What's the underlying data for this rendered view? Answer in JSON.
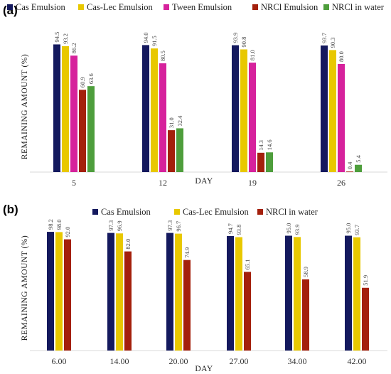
{
  "chart_data": [
    {
      "panel": "(a)",
      "type": "bar",
      "xlabel": "DAY",
      "ylabel": "REMAINING AMOUNT (%)",
      "ylim": [
        0,
        100
      ],
      "grid": false,
      "legend_position": "top",
      "categories": [
        "5",
        "12",
        "19",
        "26"
      ],
      "series": [
        {
          "name": "Cas Emulsion",
          "color": "#14195e",
          "values": [
            94.5,
            94.0,
            93.9,
            93.7
          ]
        },
        {
          "name": "Cas-Lec Emulsion",
          "color": "#e8c800",
          "values": [
            93.2,
            91.5,
            90.8,
            90.3
          ]
        },
        {
          "name": "Tween Emulsion",
          "color": "#d6229c",
          "values": [
            86.2,
            80.5,
            81.0,
            80.0
          ]
        },
        {
          "name": "NRCl Emulsion",
          "color": "#a4200c",
          "values": [
            60.9,
            31.0,
            14.3,
            0.4
          ]
        },
        {
          "name": "NRCl in water",
          "color": "#4e9e3c",
          "values": [
            63.6,
            32.4,
            14.6,
            5.4
          ]
        }
      ],
      "data_labels": [
        [
          "94.5",
          "94.0",
          "93.9",
          "93.7"
        ],
        [
          "93.2",
          "91.5",
          "90.8",
          "90.3"
        ],
        [
          "86.2",
          "80.5",
          "81.0",
          "80.0"
        ],
        [
          "60.9",
          "31.0",
          "14.3",
          "0.4"
        ],
        [
          "63.6",
          "32.4",
          "14.6",
          "5.4"
        ]
      ]
    },
    {
      "panel": "(b)",
      "type": "bar",
      "xlabel": "DAY",
      "ylabel": "REMAINING AMOUNT (%)",
      "ylim": [
        0,
        100
      ],
      "grid": false,
      "legend_position": "top",
      "categories": [
        "6.00",
        "14.00",
        "20.00",
        "27.00",
        "34.00",
        "42.00"
      ],
      "series": [
        {
          "name": "Cas Emulsion",
          "color": "#14195e",
          "values": [
            98.2,
            97.3,
            97.3,
            94.7,
            95.0,
            95.0
          ]
        },
        {
          "name": "Cas-Lec Emulsion",
          "color": "#e8c800",
          "values": [
            98.0,
            96.9,
            96.7,
            93.8,
            93.9,
            93.7
          ]
        },
        {
          "name": "NRCl in water",
          "color": "#a4200c",
          "values": [
            92.0,
            82.0,
            74.9,
            65.1,
            58.9,
            51.9
          ]
        }
      ],
      "data_labels": [
        [
          "98.2",
          "97.3",
          "97.3",
          "94.7",
          "95.0",
          "95.0"
        ],
        [
          "98.0",
          "96.9",
          "96.7",
          "93.8",
          "93.9",
          "93.7"
        ],
        [
          "92.0",
          "82.0",
          "74.9",
          "65.1",
          "58.9",
          "51.9"
        ]
      ]
    }
  ]
}
